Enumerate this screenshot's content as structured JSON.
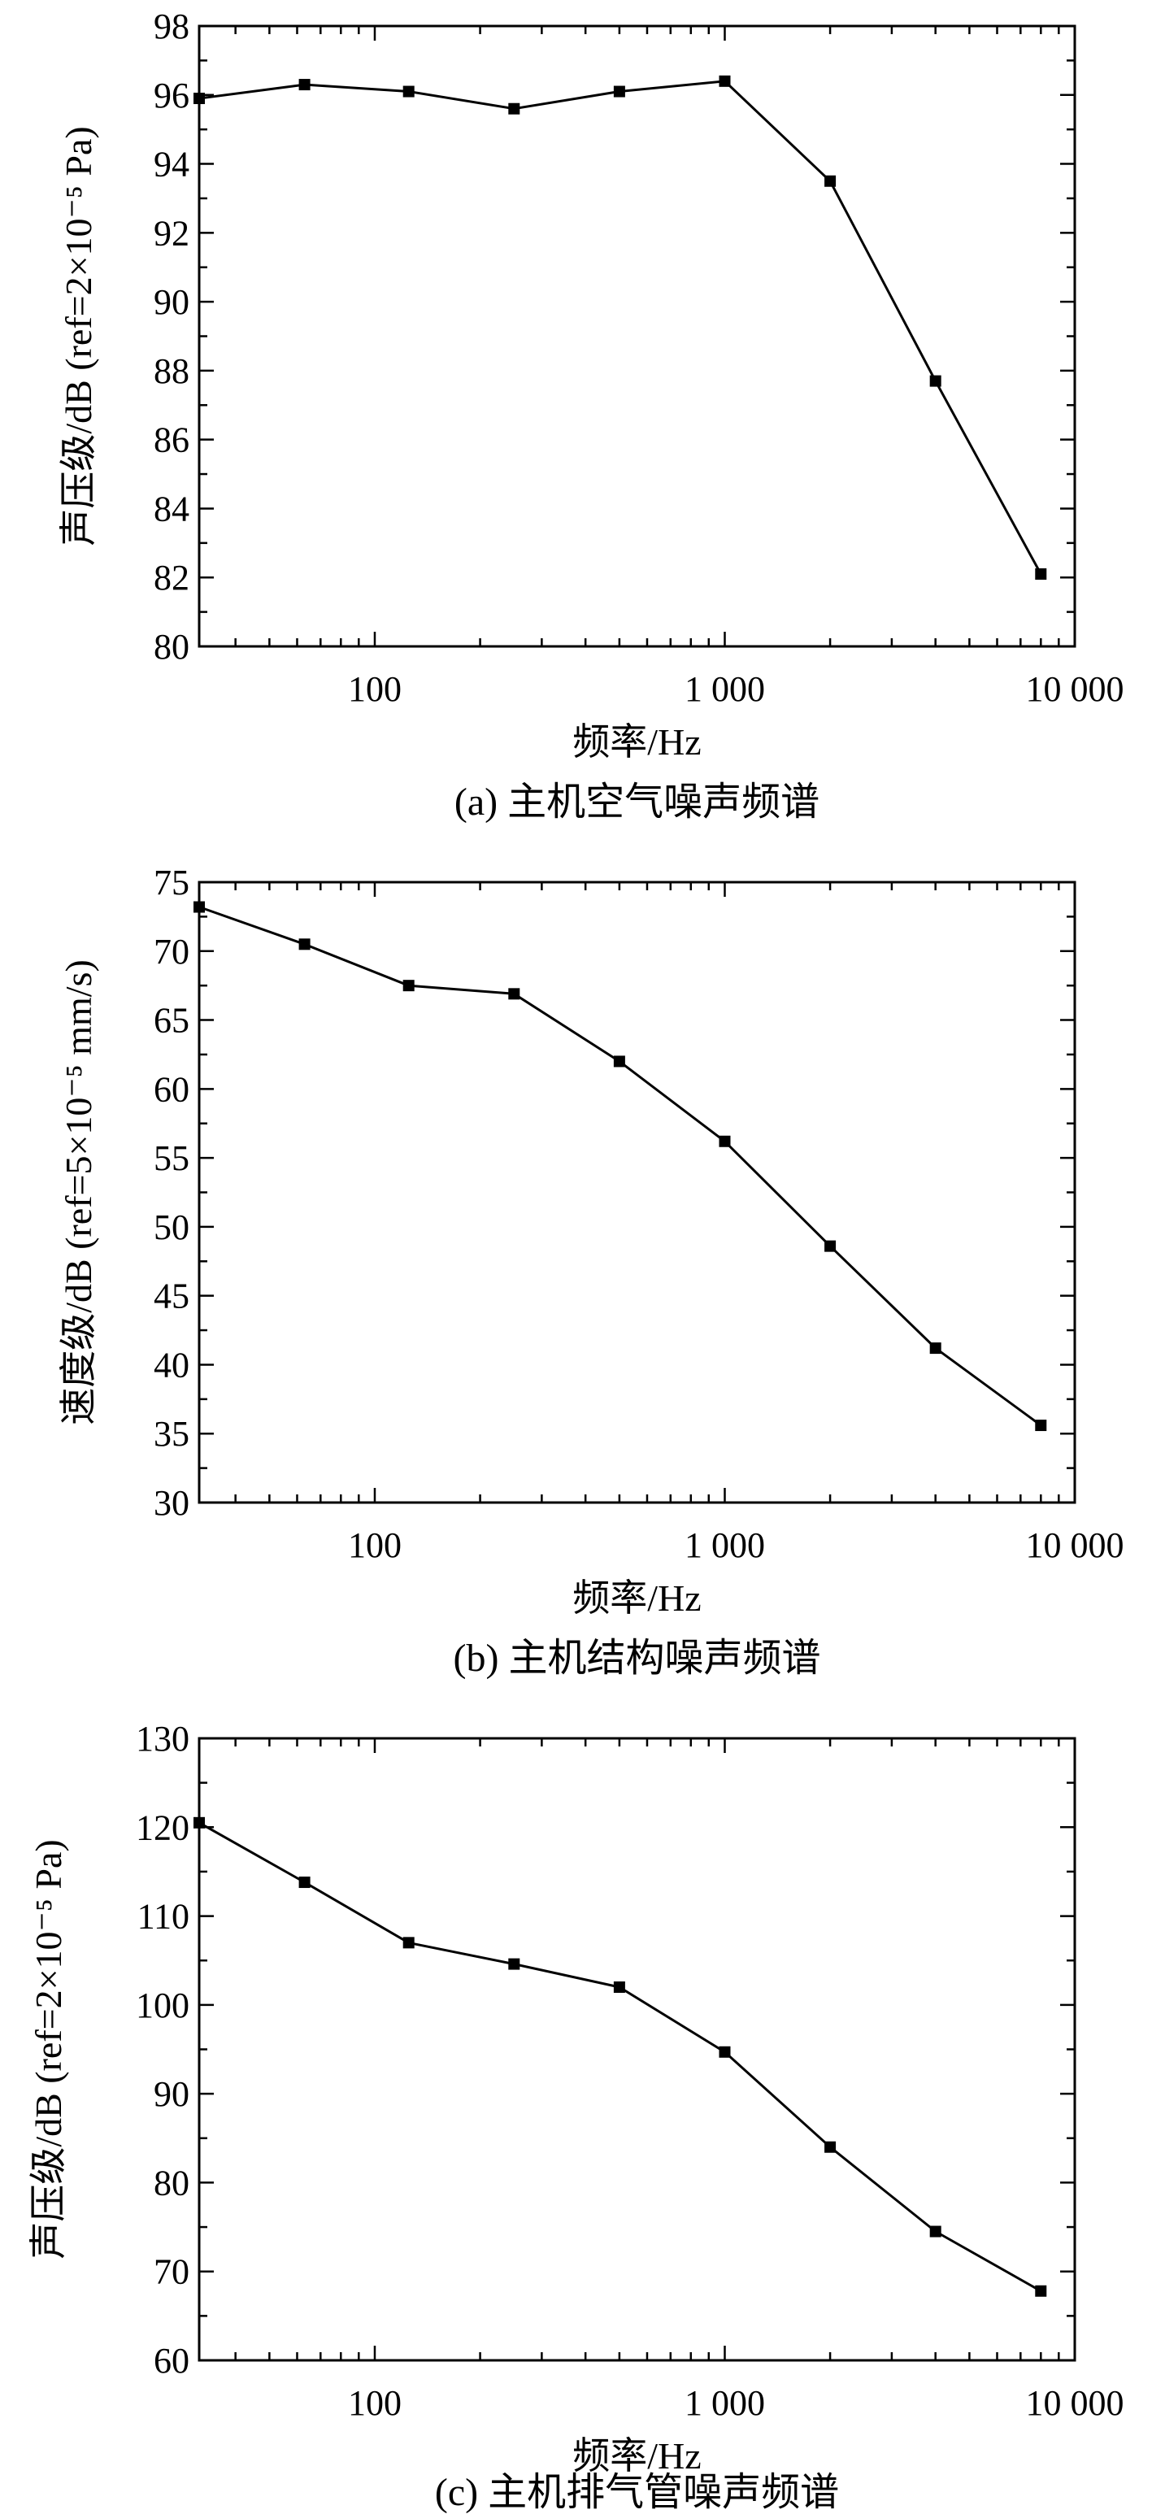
{
  "colors": {
    "line": "#000000",
    "frame": "#000000",
    "background": "#ffffff"
  },
  "chart_data": [
    {
      "type": "line",
      "caption": "(a) 主机空气噪声频谱",
      "xlabel": "频率/Hz",
      "ylabel": "声压级/dB (ref=2×10⁻⁵ Pa)",
      "xscale": "log",
      "xlim": [
        31.5,
        10000
      ],
      "ylim": [
        80,
        98
      ],
      "xticks": [
        100,
        1000,
        10000
      ],
      "xtick_labels": [
        "100",
        "1 000",
        "10 000"
      ],
      "yticks": [
        80,
        82,
        84,
        86,
        88,
        90,
        92,
        94,
        96,
        98
      ],
      "ytick_labels": [
        "80",
        "82",
        "84",
        "86",
        "88",
        "90",
        "92",
        "94",
        "96",
        "98"
      ],
      "x": [
        31.5,
        63,
        125,
        250,
        500,
        1000,
        2000,
        4000,
        8000
      ],
      "y": [
        95.9,
        96.3,
        96.1,
        95.6,
        96.1,
        96.4,
        93.5,
        87.7,
        82.1
      ],
      "marker": "square",
      "grid": false,
      "legend": false
    },
    {
      "type": "line",
      "caption": "(b) 主机结构噪声频谱",
      "xlabel": "频率/Hz",
      "ylabel": "速度级/dB (ref=5×10⁻⁵ mm/s)",
      "xscale": "log",
      "xlim": [
        31.5,
        10000
      ],
      "ylim": [
        30,
        75
      ],
      "xticks": [
        100,
        1000,
        10000
      ],
      "xtick_labels": [
        "100",
        "1 000",
        "10 000"
      ],
      "yticks": [
        30,
        35,
        40,
        45,
        50,
        55,
        60,
        65,
        70,
        75
      ],
      "ytick_labels": [
        "30",
        "35",
        "40",
        "45",
        "50",
        "55",
        "60",
        "65",
        "70",
        "75"
      ],
      "x": [
        31.5,
        63,
        125,
        250,
        500,
        1000,
        2000,
        4000,
        8000
      ],
      "y": [
        73.2,
        70.5,
        67.5,
        66.9,
        62.0,
        56.2,
        48.6,
        41.2,
        35.6
      ],
      "marker": "square",
      "grid": false,
      "legend": false
    },
    {
      "type": "line",
      "caption": "(c) 主机排气管噪声频谱",
      "xlabel": "频率/Hz",
      "ylabel": "声压级/dB (ref=2×10⁻⁵ Pa)",
      "xscale": "log",
      "xlim": [
        31.5,
        10000
      ],
      "ylim": [
        60,
        130
      ],
      "xticks": [
        100,
        1000,
        10000
      ],
      "xtick_labels": [
        "100",
        "1 000",
        "10 000"
      ],
      "yticks": [
        60,
        70,
        80,
        90,
        100,
        110,
        120,
        130
      ],
      "ytick_labels": [
        "60",
        "70",
        "80",
        "90",
        "100",
        "110",
        "120",
        "130"
      ],
      "x": [
        31.5,
        63,
        125,
        250,
        500,
        1000,
        2000,
        4000,
        8000
      ],
      "y": [
        120.5,
        113.8,
        107.0,
        104.6,
        102.0,
        94.7,
        84.0,
        74.5,
        67.8
      ],
      "marker": "square",
      "grid": false,
      "legend": false
    }
  ]
}
